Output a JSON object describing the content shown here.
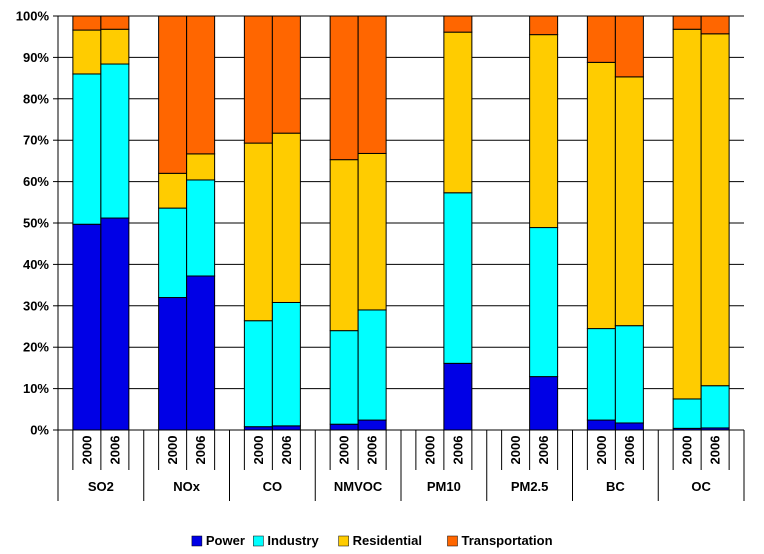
{
  "chart_data": {
    "type": "bar",
    "stacked": true,
    "title": "",
    "xlabel": "",
    "ylabel": "",
    "ylim": [
      0,
      100
    ],
    "y_ticks": [
      "0%",
      "10%",
      "20%",
      "30%",
      "40%",
      "50%",
      "60%",
      "70%",
      "80%",
      "90%",
      "100%"
    ],
    "grid": "horizontal",
    "legend_position": "bottom",
    "groups": [
      "SO2",
      "NOx",
      "CO",
      "NMVOC",
      "PM10",
      "PM2.5",
      "BC",
      "OC"
    ],
    "years": [
      "2000",
      "2006"
    ],
    "series": [
      {
        "name": "Power",
        "color": "#0000e6",
        "values": [
          [
            49.7,
            51.2
          ],
          [
            32.0,
            37.2
          ],
          [
            0.8,
            1.0
          ],
          [
            1.4,
            2.4
          ],
          [
            null,
            16.1
          ],
          [
            null,
            12.9
          ],
          [
            2.4,
            1.7
          ],
          [
            0.4,
            0.5
          ]
        ]
      },
      {
        "name": "Industry",
        "color": "#00ffff",
        "values": [
          [
            36.3,
            37.2
          ],
          [
            21.6,
            23.2
          ],
          [
            25.6,
            29.8
          ],
          [
            22.6,
            26.6
          ],
          [
            null,
            41.2
          ],
          [
            null,
            36.0
          ],
          [
            22.1,
            23.5
          ],
          [
            7.1,
            10.2
          ]
        ]
      },
      {
        "name": "Residential",
        "color": "#ffcc00",
        "values": [
          [
            10.6,
            8.4
          ],
          [
            8.4,
            6.3
          ],
          [
            42.9,
            40.9
          ],
          [
            41.3,
            37.8
          ],
          [
            null,
            38.8
          ],
          [
            null,
            46.6
          ],
          [
            64.3,
            60.1
          ],
          [
            89.3,
            85.0
          ]
        ]
      },
      {
        "name": "Transportation",
        "color": "#ff6600",
        "values": [
          [
            3.4,
            3.2
          ],
          [
            38.0,
            33.3
          ],
          [
            30.7,
            28.3
          ],
          [
            34.7,
            33.2
          ],
          [
            null,
            3.9
          ],
          [
            null,
            4.5
          ],
          [
            11.2,
            14.7
          ],
          [
            3.2,
            4.3
          ]
        ]
      }
    ]
  }
}
